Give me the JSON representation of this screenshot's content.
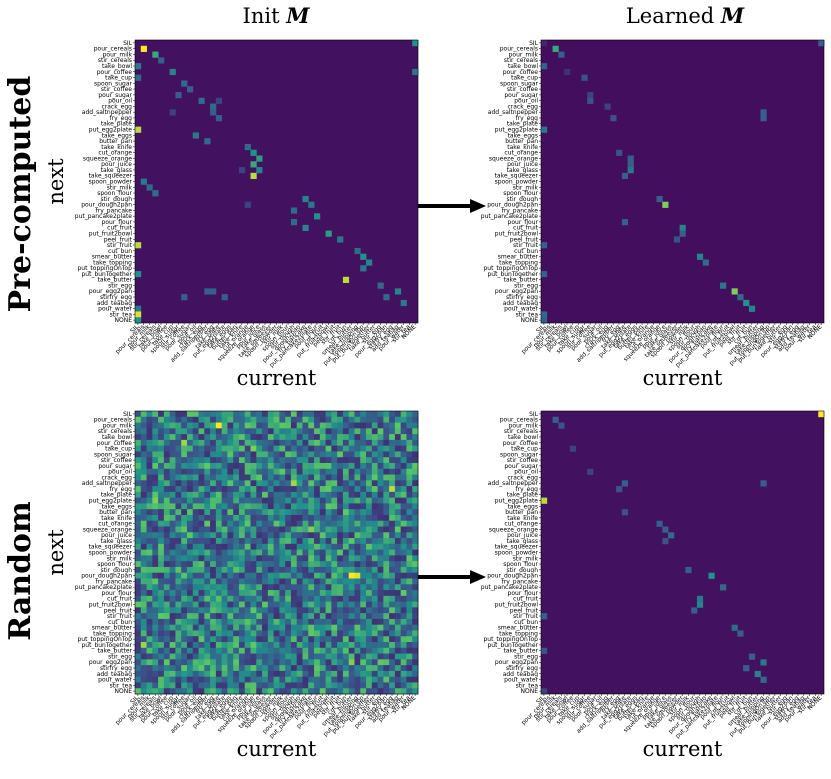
{
  "figure": {
    "col_titles": [
      {
        "text": "Init ",
        "math": "M"
      },
      {
        "text": "Learned ",
        "math": "M"
      }
    ],
    "row_titles": [
      "Pre-computed",
      "Random"
    ]
  },
  "chart_data": [
    {
      "type": "heatmap",
      "panel": "precomputed-init",
      "xlabel": "current",
      "ylabel": "next",
      "labels": [
        "SIL",
        "pour_cereals",
        "pour_milk",
        "stir_cereals",
        "take_bowl",
        "pour_coffee",
        "take_cup",
        "spoon_sugar",
        "stir_coffee",
        "pour_sugar",
        "pour_oil",
        "crack_egg",
        "add_saltnpepper",
        "fry_egg",
        "take_plate",
        "put_egg2plate",
        "take_eggs",
        "butter_pan",
        "take_knife",
        "cut_orange",
        "squeeze_orange",
        "pour_juice",
        "take_glass",
        "take_squeezer",
        "spoon_powder",
        "stir_milk",
        "spoon_flour",
        "stir_dough",
        "pour_dough2pan",
        "fry_pancake",
        "put_pancake2plate",
        "pour_flour",
        "cut_fruit",
        "put_fruit2bowl",
        "peel_fruit",
        "stir_fruit",
        "cut_bun",
        "smear_butter",
        "take_topping",
        "put_toppingOnTop",
        "put_bunTogether",
        "take_butter",
        "stir_egg",
        "pour_egg2pan",
        "stirfry_egg",
        "add_teabag",
        "pour_water",
        "stir_tea",
        "NONE"
      ],
      "colormap": "viridis",
      "background": 0.05,
      "cells": [
        [
          1,
          1,
          1.0
        ],
        [
          0,
          48,
          0.5
        ],
        [
          2,
          3,
          0.6
        ],
        [
          3,
          4,
          0.3
        ],
        [
          4,
          0,
          0.4
        ],
        [
          5,
          6,
          0.45
        ],
        [
          6,
          0,
          0.35
        ],
        [
          7,
          8,
          0.35
        ],
        [
          8,
          9,
          0.3
        ],
        [
          9,
          7,
          0.3
        ],
        [
          10,
          11,
          0.35
        ],
        [
          11,
          13,
          0.35
        ],
        [
          12,
          13,
          0.3
        ],
        [
          13,
          14,
          0.3
        ],
        [
          15,
          0,
          0.9
        ],
        [
          16,
          10,
          0.4
        ],
        [
          17,
          12,
          0.35
        ],
        [
          18,
          19,
          0.35
        ],
        [
          19,
          20,
          0.5
        ],
        [
          20,
          21,
          0.55
        ],
        [
          21,
          20,
          0.6
        ],
        [
          22,
          21,
          0.45
        ],
        [
          23,
          20,
          0.9
        ],
        [
          24,
          1,
          0.4
        ],
        [
          25,
          2,
          0.35
        ],
        [
          26,
          3,
          0.35
        ],
        [
          27,
          29,
          0.45
        ],
        [
          28,
          30,
          0.4
        ],
        [
          29,
          27,
          0.35
        ],
        [
          30,
          31,
          0.5
        ],
        [
          31,
          27,
          0.35
        ],
        [
          32,
          29,
          0.45
        ],
        [
          33,
          33,
          0.55
        ],
        [
          34,
          35,
          0.4
        ],
        [
          35,
          0,
          0.9
        ],
        [
          36,
          38,
          0.35
        ],
        [
          37,
          39,
          0.5
        ],
        [
          38,
          40,
          0.45
        ],
        [
          39,
          39,
          0.4
        ],
        [
          40,
          0,
          0.5
        ],
        [
          41,
          36,
          0.9
        ],
        [
          42,
          42,
          0.35
        ],
        [
          43,
          45,
          0.45
        ],
        [
          44,
          43,
          0.35
        ],
        [
          45,
          46,
          0.4
        ],
        [
          46,
          0,
          0.4
        ],
        [
          47,
          0,
          0.95
        ],
        [
          48,
          0,
          0.5
        ],
        [
          43,
          12,
          0.3
        ],
        [
          43,
          13,
          0.3
        ],
        [
          44,
          8,
          0.3
        ],
        [
          44,
          15,
          0.3
        ],
        [
          5,
          48,
          0.4
        ],
        [
          12,
          6,
          0.2
        ],
        [
          10,
          14,
          0.2
        ],
        [
          22,
          18,
          0.2
        ],
        [
          28,
          19,
          0.2
        ]
      ]
    },
    {
      "type": "heatmap",
      "panel": "precomputed-learned",
      "xlabel": "current",
      "ylabel": "next",
      "labels_ref": "same as panel precomputed-init",
      "colormap": "viridis",
      "background": 0.04,
      "cells": [
        [
          1,
          2,
          0.6
        ],
        [
          0,
          48,
          0.3
        ],
        [
          2,
          3,
          0.3
        ],
        [
          4,
          0,
          0.3
        ],
        [
          6,
          7,
          0.25
        ],
        [
          9,
          8,
          0.2
        ],
        [
          10,
          8,
          0.25
        ],
        [
          11,
          11,
          0.2
        ],
        [
          12,
          38,
          0.3
        ],
        [
          13,
          38,
          0.3
        ],
        [
          13,
          12,
          0.25
        ],
        [
          15,
          0,
          0.4
        ],
        [
          19,
          13,
          0.25
        ],
        [
          20,
          15,
          0.3
        ],
        [
          21,
          15,
          0.3
        ],
        [
          22,
          15,
          0.4
        ],
        [
          23,
          14,
          0.3
        ],
        [
          27,
          20,
          0.3
        ],
        [
          28,
          21,
          0.8
        ],
        [
          31,
          14,
          0.3
        ],
        [
          32,
          24,
          0.45
        ],
        [
          33,
          24,
          0.3
        ],
        [
          34,
          23,
          0.25
        ],
        [
          35,
          0,
          0.3
        ],
        [
          37,
          27,
          0.45
        ],
        [
          38,
          28,
          0.35
        ],
        [
          40,
          0,
          0.3
        ],
        [
          42,
          31,
          0.4
        ],
        [
          43,
          33,
          0.8
        ],
        [
          44,
          34,
          0.35
        ],
        [
          45,
          35,
          0.5
        ],
        [
          46,
          36,
          0.45
        ],
        [
          47,
          0,
          0.35
        ],
        [
          48,
          0,
          0.3
        ],
        [
          0,
          0,
          0.12
        ],
        [
          5,
          4,
          0.15
        ]
      ]
    },
    {
      "type": "heatmap",
      "panel": "random-init",
      "xlabel": "current",
      "ylabel": "next",
      "labels": [
        "SIL",
        "pour_cereals",
        "pour_milk",
        "stir_cereals",
        "take_bowl",
        "pour_coffee",
        "take_cup",
        "spoon_sugar",
        "stir_coffee",
        "pour_sugar",
        "pour_oil",
        "crack_egg",
        "add_saltnpepper",
        "fry_egg",
        "take_plate",
        "put_egg2plate",
        "take_eggs",
        "butter_pan",
        "take_knife",
        "cut_orange",
        "squeeze_orange",
        "pour_juice",
        "take_glass",
        "take_squeezer",
        "spoon_powder",
        "stir_milk",
        "spoon_flour",
        "stir_dough",
        "pour_dough2pan",
        "fry_pancake",
        "put_pancake2plate",
        "pour_flour",
        "cut_fruit",
        "put_fruit2bowl",
        "peel_fruit",
        "stir_fruit",
        "cut_bun",
        "smear_butter",
        "take_topping",
        "put_toppingOnTop",
        "put_bunTogether",
        "take_butter",
        "stir_egg",
        "pour_egg2pan",
        "stirfry_egg",
        "add_teabag",
        "pour_water",
        "stir_tea",
        "NONE"
      ],
      "colormap": "viridis",
      "random_seed": 7,
      "value_range": [
        0.15,
        0.75
      ],
      "bright_cells": [
        [
          2,
          14,
          1.0
        ],
        [
          5,
          8,
          0.85
        ],
        [
          13,
          44,
          0.9
        ],
        [
          15,
          3,
          0.8
        ],
        [
          20,
          30,
          0.8
        ],
        [
          28,
          37,
          1.0
        ],
        [
          28,
          38,
          0.95
        ],
        [
          40,
          1,
          0.85
        ],
        [
          43,
          37,
          0.8
        ],
        [
          12,
          27,
          0.85
        ],
        [
          6,
          20,
          0.8
        ]
      ]
    },
    {
      "type": "heatmap",
      "panel": "random-learned",
      "xlabel": "current",
      "ylabel": "next",
      "labels_ref": "same as panel random-init",
      "colormap": "viridis",
      "background": 0.05,
      "cells": [
        [
          0,
          48,
          1.0
        ],
        [
          1,
          2,
          0.3
        ],
        [
          2,
          3,
          0.25
        ],
        [
          6,
          5,
          0.2
        ],
        [
          10,
          8,
          0.2
        ],
        [
          12,
          14,
          0.3
        ],
        [
          12,
          38,
          0.3
        ],
        [
          13,
          13,
          0.25
        ],
        [
          15,
          0,
          0.9
        ],
        [
          17,
          14,
          0.25
        ],
        [
          19,
          20,
          0.3
        ],
        [
          20,
          21,
          0.3
        ],
        [
          21,
          22,
          0.35
        ],
        [
          22,
          21,
          0.25
        ],
        [
          27,
          25,
          0.3
        ],
        [
          28,
          29,
          0.5
        ],
        [
          30,
          31,
          0.35
        ],
        [
          32,
          27,
          0.4
        ],
        [
          33,
          27,
          0.45
        ],
        [
          34,
          26,
          0.3
        ],
        [
          35,
          0,
          0.3
        ],
        [
          37,
          33,
          0.35
        ],
        [
          38,
          34,
          0.3
        ],
        [
          41,
          0,
          0.25
        ],
        [
          42,
          36,
          0.3
        ],
        [
          43,
          38,
          0.4
        ],
        [
          44,
          35,
          0.3
        ],
        [
          45,
          37,
          0.45
        ],
        [
          46,
          38,
          0.35
        ],
        [
          48,
          0,
          0.2
        ]
      ]
    }
  ]
}
